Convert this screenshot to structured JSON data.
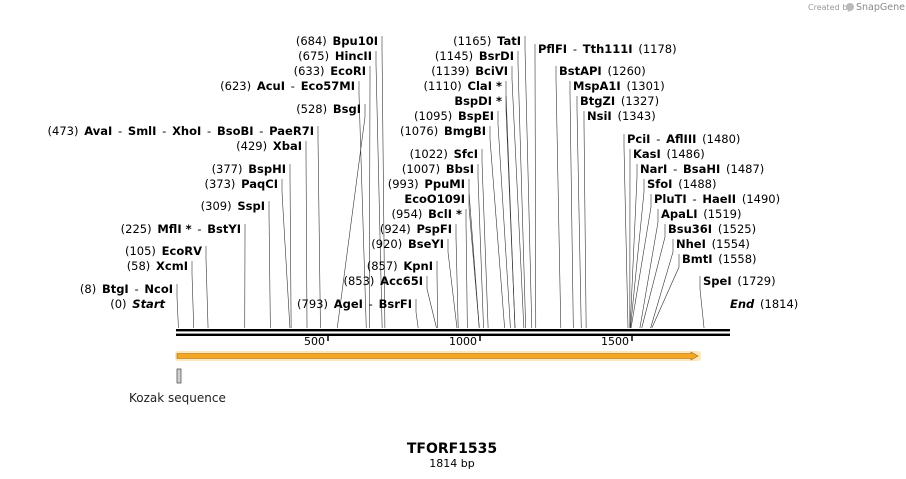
{
  "watermark": {
    "prefix": "Created by",
    "brand": "SnapGene"
  },
  "sequence": {
    "name": "TFORF1535",
    "length_label": "1814 bp",
    "length": 1814
  },
  "axis_ticks": [
    "500",
    "1000",
    "1500"
  ],
  "feature_label": "Kozak sequence",
  "labels": [
    {
      "parts": [
        {
          "t": "(684)",
          "c": "pos"
        },
        {
          "t": "Bpu10I",
          "c": "nm"
        }
      ],
      "site": 684
    },
    {
      "parts": [
        {
          "t": "(675)",
          "c": "pos"
        },
        {
          "t": "HincII",
          "c": "nm"
        }
      ],
      "site": 675
    },
    {
      "parts": [
        {
          "t": "(633)",
          "c": "pos"
        },
        {
          "t": "EcoRI",
          "c": "nm"
        }
      ],
      "site": 633
    },
    {
      "parts": [
        {
          "t": "(623)",
          "c": "pos"
        },
        {
          "t": "AcuI",
          "c": "nm"
        },
        {
          "t": "-",
          "c": "pos"
        },
        {
          "t": "Eco57MI",
          "c": "nm"
        }
      ],
      "site": 623
    },
    {
      "parts": [
        {
          "t": "(528)",
          "c": "pos"
        },
        {
          "t": "BsgI",
          "c": "nm"
        }
      ],
      "site": 528
    },
    {
      "parts": [
        {
          "t": "(473)",
          "c": "pos"
        },
        {
          "t": "AvaI",
          "c": "nm"
        },
        {
          "t": "-",
          "c": "pos"
        },
        {
          "t": "SmlI",
          "c": "nm"
        },
        {
          "t": "-",
          "c": "pos"
        },
        {
          "t": "XhoI",
          "c": "nm"
        },
        {
          "t": "-",
          "c": "pos"
        },
        {
          "t": "BsoBI",
          "c": "nm"
        },
        {
          "t": "-",
          "c": "pos"
        },
        {
          "t": "PaeR7I",
          "c": "nm"
        }
      ],
      "site": 473
    },
    {
      "parts": [
        {
          "t": "(429)",
          "c": "pos"
        },
        {
          "t": "XbaI",
          "c": "nm"
        }
      ],
      "site": 429
    },
    {
      "parts": [
        {
          "t": "(377)",
          "c": "pos"
        },
        {
          "t": "BspHI",
          "c": "nm"
        }
      ],
      "site": 377
    },
    {
      "parts": [
        {
          "t": "(373)",
          "c": "pos"
        },
        {
          "t": "PaqCI",
          "c": "nm"
        }
      ],
      "site": 373
    },
    {
      "parts": [
        {
          "t": "(309)",
          "c": "pos"
        },
        {
          "t": "SspI",
          "c": "nm"
        }
      ],
      "site": 309
    },
    {
      "parts": [
        {
          "t": "(225)",
          "c": "pos"
        },
        {
          "t": "MflI *",
          "c": "nm"
        },
        {
          "t": "-",
          "c": "pos"
        },
        {
          "t": "BstYI",
          "c": "nm"
        }
      ],
      "site": 225
    },
    {
      "parts": [
        {
          "t": "(105)",
          "c": "pos"
        },
        {
          "t": "EcoRV",
          "c": "nm"
        }
      ],
      "site": 105
    },
    {
      "parts": [
        {
          "t": "(58)",
          "c": "pos"
        },
        {
          "t": "XcmI",
          "c": "nm"
        }
      ],
      "site": 58
    },
    {
      "parts": [
        {
          "t": "(8)",
          "c": "pos"
        },
        {
          "t": "BtgI",
          "c": "nm"
        },
        {
          "t": "-",
          "c": "pos"
        },
        {
          "t": "NcoI",
          "c": "nm"
        }
      ],
      "site": 8
    },
    {
      "parts": [
        {
          "t": "(0)",
          "c": "pos"
        },
        {
          "t": "Start",
          "c": "it"
        }
      ],
      "site": 0
    },
    {
      "parts": [
        {
          "t": "(1165)",
          "c": "pos"
        },
        {
          "t": "TatI",
          "c": "nm"
        }
      ],
      "site": 1165
    },
    {
      "parts": [
        {
          "t": "(1145)",
          "c": "pos"
        },
        {
          "t": "BsrDI",
          "c": "nm"
        }
      ],
      "site": 1145
    },
    {
      "parts": [
        {
          "t": "(1139)",
          "c": "pos"
        },
        {
          "t": "BciVI",
          "c": "nm"
        }
      ],
      "site": 1139
    },
    {
      "parts": [
        {
          "t": "(1110)",
          "c": "pos"
        },
        {
          "t": "ClaI *",
          "c": "nm"
        }
      ],
      "site": 1110
    },
    {
      "parts": [
        {
          "t": "BspDI *",
          "c": "nm"
        }
      ],
      "site": 1110
    },
    {
      "parts": [
        {
          "t": "(1095)",
          "c": "pos"
        },
        {
          "t": "BspEI",
          "c": "nm"
        }
      ],
      "site": 1095
    },
    {
      "parts": [
        {
          "t": "(1076)",
          "c": "pos"
        },
        {
          "t": "BmgBI",
          "c": "nm"
        }
      ],
      "site": 1076
    },
    {
      "parts": [
        {
          "t": "(1022)",
          "c": "pos"
        },
        {
          "t": "SfcI",
          "c": "nm"
        }
      ],
      "site": 1022
    },
    {
      "parts": [
        {
          "t": "(1007)",
          "c": "pos"
        },
        {
          "t": "BbsI",
          "c": "nm"
        }
      ],
      "site": 1007
    },
    {
      "parts": [
        {
          "t": "(993)",
          "c": "pos"
        },
        {
          "t": "PpuMI",
          "c": "nm"
        }
      ],
      "site": 993
    },
    {
      "parts": [
        {
          "t": "EcoO109I",
          "c": "nm"
        }
      ],
      "site": 993
    },
    {
      "parts": [
        {
          "t": "(954)",
          "c": "pos"
        },
        {
          "t": "BclI *",
          "c": "nm"
        }
      ],
      "site": 954
    },
    {
      "parts": [
        {
          "t": "(924)",
          "c": "pos"
        },
        {
          "t": "PspFI",
          "c": "nm"
        }
      ],
      "site": 924
    },
    {
      "parts": [
        {
          "t": "(920)",
          "c": "pos"
        },
        {
          "t": "BseYI",
          "c": "nm"
        }
      ],
      "site": 920
    },
    {
      "parts": [
        {
          "t": "(857)",
          "c": "pos"
        },
        {
          "t": "KpnI",
          "c": "nm"
        }
      ],
      "site": 857
    },
    {
      "parts": [
        {
          "t": "(853)",
          "c": "pos"
        },
        {
          "t": "Acc65I",
          "c": "nm"
        }
      ],
      "site": 853
    },
    {
      "parts": [
        {
          "t": "(793)",
          "c": "pos"
        },
        {
          "t": "AgeI",
          "c": "nm"
        },
        {
          "t": "-",
          "c": "pos"
        },
        {
          "t": "BsrFI",
          "c": "nm"
        }
      ],
      "site": 793
    },
    {
      "parts": [
        {
          "t": "PflFI",
          "c": "nm"
        },
        {
          "t": "-",
          "c": "pos"
        },
        {
          "t": "Tth111I",
          "c": "nm"
        },
        {
          "t": "(1178)",
          "c": "pos"
        }
      ],
      "site": 1178
    },
    {
      "parts": [
        {
          "t": "BstAPI",
          "c": "nm"
        },
        {
          "t": "(1260)",
          "c": "pos"
        }
      ],
      "site": 1260
    },
    {
      "parts": [
        {
          "t": "MspA1I",
          "c": "nm"
        },
        {
          "t": "(1301)",
          "c": "pos"
        }
      ],
      "site": 1301
    },
    {
      "parts": [
        {
          "t": "BtgZI",
          "c": "nm"
        },
        {
          "t": "(1327)",
          "c": "pos"
        }
      ],
      "site": 1327
    },
    {
      "parts": [
        {
          "t": "NsiI",
          "c": "nm"
        },
        {
          "t": "(1343)",
          "c": "pos"
        }
      ],
      "site": 1343
    },
    {
      "parts": [
        {
          "t": "PciI",
          "c": "nm"
        },
        {
          "t": "-",
          "c": "pos"
        },
        {
          "t": "AflIII",
          "c": "nm"
        },
        {
          "t": "(1480)",
          "c": "pos"
        }
      ],
      "site": 1480
    },
    {
      "parts": [
        {
          "t": "KasI",
          "c": "nm"
        },
        {
          "t": "(1486)",
          "c": "pos"
        }
      ],
      "site": 1486
    },
    {
      "parts": [
        {
          "t": "NarI",
          "c": "nm"
        },
        {
          "t": "-",
          "c": "pos"
        },
        {
          "t": "BsaHI",
          "c": "nm"
        },
        {
          "t": "(1487)",
          "c": "pos"
        }
      ],
      "site": 1487
    },
    {
      "parts": [
        {
          "t": "SfoI",
          "c": "nm"
        },
        {
          "t": "(1488)",
          "c": "pos"
        }
      ],
      "site": 1488
    },
    {
      "parts": [
        {
          "t": "PluTI",
          "c": "nm"
        },
        {
          "t": "-",
          "c": "pos"
        },
        {
          "t": "HaeII",
          "c": "nm"
        },
        {
          "t": "(1490)",
          "c": "pos"
        }
      ],
      "site": 1490
    },
    {
      "parts": [
        {
          "t": "ApaLI",
          "c": "nm"
        },
        {
          "t": "(1519)",
          "c": "pos"
        }
      ],
      "site": 1519
    },
    {
      "parts": [
        {
          "t": "Bsu36I",
          "c": "nm"
        },
        {
          "t": "(1525)",
          "c": "pos"
        }
      ],
      "site": 1525
    },
    {
      "parts": [
        {
          "t": "NheI",
          "c": "nm"
        },
        {
          "t": "(1554)",
          "c": "pos"
        }
      ],
      "site": 1554
    },
    {
      "parts": [
        {
          "t": "BmtI",
          "c": "nm"
        },
        {
          "t": "(1558)",
          "c": "pos"
        }
      ],
      "site": 1558
    },
    {
      "parts": [
        {
          "t": "SpeI",
          "c": "nm"
        },
        {
          "t": "(1729)",
          "c": "pos"
        }
      ],
      "site": 1729
    },
    {
      "parts": [
        {
          "t": "End",
          "c": "it"
        },
        {
          "t": "(1814)",
          "c": "pos"
        }
      ],
      "site": 1814
    }
  ],
  "colors": {
    "arrow_fill": "#f5a623",
    "arrow_glow": "#fde7b8",
    "line": "#000000"
  }
}
